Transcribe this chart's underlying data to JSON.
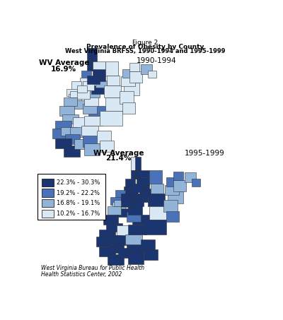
{
  "title_line1": "Figure 2",
  "title_line2": "Prevalence of Obesity by County",
  "title_line3": "West Virginia BRFSS, 1990-1994 and 1995-1999",
  "label_1990": "1990-1994",
  "label_1995": "1995-1999",
  "wv_avg_1990_line1": "WV Average",
  "wv_avg_1990_line2": "16.9%",
  "wv_avg_1995_line1": "WV Average",
  "wv_avg_1995_line2": "21.4%",
  "legend_labels": [
    "22.3% - 30.3%",
    "19.2% - 22.2%",
    "16.8% - 19.1%",
    "10.2% - 16.7%"
  ],
  "legend_colors": [
    "#1a3570",
    "#4a72b8",
    "#92b4d8",
    "#d8e8f4"
  ],
  "footnote_line1": "West Virginia Bureau for Public Health",
  "footnote_line2": "Health Statistics Center, 2002",
  "bg_color": "#ffffff",
  "ec": "#333333"
}
